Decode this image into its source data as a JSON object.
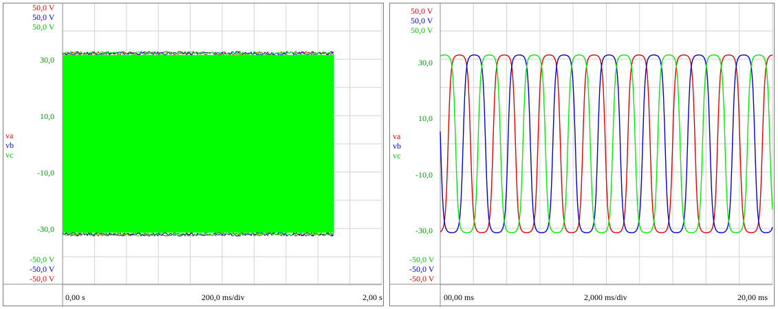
{
  "chart_data": [
    {
      "type": "line",
      "scale": {
        "top": [
          "50,0 V",
          "50,0 V",
          "50,0 V"
        ],
        "bottom": [
          "-50,0 V",
          "-50,0 V",
          "-50,0 V"
        ]
      },
      "legend": [
        "va",
        "vb",
        "vc"
      ],
      "y_ticks": [
        "30,0",
        "10,0",
        "-10,0",
        "-30,0"
      ],
      "x_ticks": {
        "start": "0,00 s",
        "div": "200,0 ms/div",
        "end": "2,00 s"
      },
      "ylim": [
        -50,
        50
      ],
      "xlim": [
        0,
        2
      ],
      "grid": true,
      "series": [
        {
          "name": "va",
          "color": "#e00000",
          "amplitude": 31.5,
          "phase_deg": 0
        },
        {
          "name": "vb",
          "color": "#0000cc",
          "amplitude": 31.5,
          "phase_deg": -120
        },
        {
          "name": "vc",
          "color": "#00ff00",
          "amplitude": 31.5,
          "phase_deg": 120
        }
      ],
      "signal_end_s": 1.7
    },
    {
      "type": "line",
      "scale": {
        "top": [
          "50,0 V",
          "50,0 V",
          "50,0 V"
        ],
        "bottom": [
          "-50,0 V",
          "-50,0 V",
          "-50,0 V"
        ]
      },
      "legend": [
        "va",
        "vb",
        "vc"
      ],
      "y_ticks": [
        "30,0",
        "10,0",
        "-10,0",
        "-30,0"
      ],
      "x_ticks": {
        "start": "00,00 ms",
        "div": "2,000 ms/div",
        "end": "20,00 ms"
      },
      "ylim": [
        -50,
        50
      ],
      "xlim": [
        0,
        20
      ],
      "grid": true,
      "cycles_shown": 7.4,
      "series": [
        {
          "name": "va",
          "color": "#e00000",
          "amplitude": 31.5,
          "phase_deg": 0
        },
        {
          "name": "vb",
          "color": "#0000cc",
          "amplitude": 31.5,
          "phase_deg": -120
        },
        {
          "name": "vc",
          "color": "#00ee00",
          "amplitude": 31.5,
          "phase_deg": 120
        }
      ]
    }
  ]
}
